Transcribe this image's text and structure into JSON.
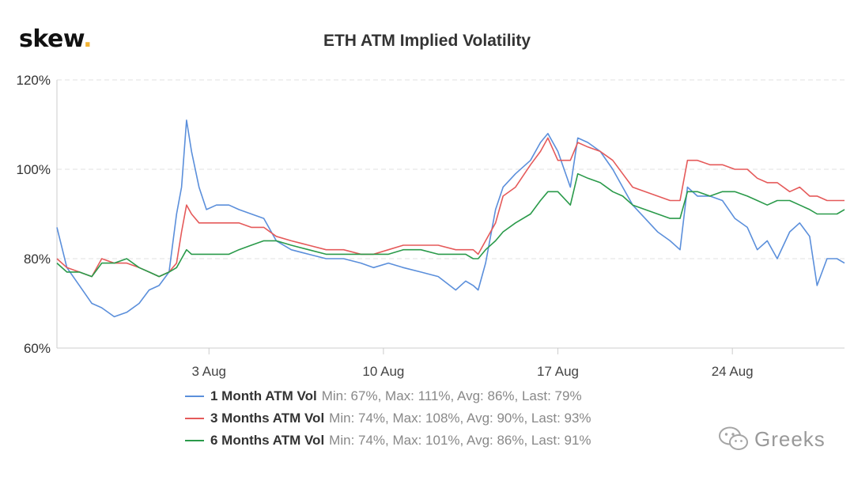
{
  "brand": {
    "text": "skew",
    "dot": "."
  },
  "chart_data": {
    "type": "line",
    "title": "ETH ATM Implied Volatility",
    "y_ticks": [
      "60%",
      "80%",
      "100%",
      "120%"
    ],
    "ylim": [
      60,
      120
    ],
    "x_ticks": [
      "3 Aug",
      "10 Aug",
      "17 Aug",
      "24 Aug"
    ],
    "x_tick_days": [
      3,
      10,
      17,
      24
    ],
    "xlim": [
      -3.1,
      28.5
    ],
    "grid": "horizontal dashed",
    "legend_position": "bottom-center",
    "series": [
      {
        "name": "1 Month ATM Vol",
        "stats": "Min: 67%, Max: 111%, Avg: 86%, Last: 79%",
        "color": "#5b8fdb",
        "x": [
          -3.1,
          -2.7,
          -2.2,
          -1.7,
          -1.3,
          -0.8,
          -0.3,
          0.2,
          0.6,
          1.0,
          1.4,
          1.7,
          1.9,
          2.1,
          2.3,
          2.6,
          2.9,
          3.3,
          3.8,
          4.2,
          4.7,
          5.2,
          5.7,
          6.3,
          7.0,
          7.7,
          8.4,
          9.1,
          9.6,
          10.2,
          10.8,
          11.5,
          12.2,
          12.9,
          13.3,
          13.6,
          13.8,
          14.1,
          14.5,
          14.8,
          15.3,
          15.9,
          16.3,
          16.6,
          17.0,
          17.5,
          17.8,
          18.2,
          18.7,
          19.2,
          19.6,
          20.0,
          20.5,
          21.0,
          21.5,
          21.9,
          22.2,
          22.6,
          23.1,
          23.6,
          24.1,
          24.6,
          25.0,
          25.4,
          25.8,
          26.3,
          26.7,
          27.1,
          27.4,
          27.8,
          28.2,
          28.5
        ],
        "values": [
          87,
          78,
          74,
          70,
          69,
          67,
          68,
          70,
          73,
          74,
          77,
          90,
          96,
          111,
          104,
          96,
          91,
          92,
          92,
          91,
          90,
          89,
          84,
          82,
          81,
          80,
          80,
          79,
          78,
          79,
          78,
          77,
          76,
          73,
          75,
          74,
          73,
          79,
          91,
          96,
          99,
          102,
          106,
          108,
          104,
          96,
          107,
          106,
          104,
          100,
          96,
          92,
          89,
          86,
          84,
          82,
          96,
          94,
          94,
          93,
          89,
          87,
          82,
          84,
          80,
          86,
          88,
          85,
          74,
          80,
          80,
          79
        ]
      },
      {
        "name": "3 Months ATM Vol",
        "stats": "Min: 74%, Max: 108%, Avg: 90%, Last: 93%",
        "color": "#e55a5a",
        "x": [
          -3.1,
          -2.7,
          -2.2,
          -1.7,
          -1.3,
          -0.8,
          -0.3,
          0.2,
          0.6,
          1.0,
          1.4,
          1.7,
          1.9,
          2.1,
          2.3,
          2.6,
          2.9,
          3.3,
          3.8,
          4.2,
          4.7,
          5.2,
          5.7,
          6.3,
          7.0,
          7.7,
          8.4,
          9.1,
          9.6,
          10.2,
          10.8,
          11.5,
          12.2,
          12.9,
          13.3,
          13.6,
          13.8,
          14.1,
          14.5,
          14.8,
          15.3,
          15.9,
          16.3,
          16.6,
          17.0,
          17.5,
          17.8,
          18.2,
          18.7,
          19.2,
          19.6,
          20.0,
          20.5,
          21.0,
          21.5,
          21.9,
          22.2,
          22.6,
          23.1,
          23.6,
          24.1,
          24.6,
          25.0,
          25.4,
          25.8,
          26.3,
          26.7,
          27.1,
          27.4,
          27.8,
          28.2,
          28.5
        ],
        "values": [
          80,
          78,
          77,
          76,
          80,
          79,
          79,
          78,
          77,
          76,
          77,
          79,
          86,
          92,
          90,
          88,
          88,
          88,
          88,
          88,
          87,
          87,
          85,
          84,
          83,
          82,
          82,
          81,
          81,
          82,
          83,
          83,
          83,
          82,
          82,
          82,
          81,
          84,
          88,
          94,
          96,
          101,
          104,
          107,
          102,
          102,
          106,
          105,
          104,
          102,
          99,
          96,
          95,
          94,
          93,
          93,
          102,
          102,
          101,
          101,
          100,
          100,
          98,
          97,
          97,
          95,
          96,
          94,
          94,
          93,
          93,
          93
        ]
      },
      {
        "name": "6 Months ATM Vol",
        "stats": "Min: 74%, Max: 101%, Avg: 86%, Last: 91%",
        "color": "#2a9a4a",
        "x": [
          -3.1,
          -2.7,
          -2.2,
          -1.7,
          -1.3,
          -0.8,
          -0.3,
          0.2,
          0.6,
          1.0,
          1.4,
          1.7,
          1.9,
          2.1,
          2.3,
          2.6,
          2.9,
          3.3,
          3.8,
          4.2,
          4.7,
          5.2,
          5.7,
          6.3,
          7.0,
          7.7,
          8.4,
          9.1,
          9.6,
          10.2,
          10.8,
          11.5,
          12.2,
          12.9,
          13.3,
          13.6,
          13.8,
          14.1,
          14.5,
          14.8,
          15.3,
          15.9,
          16.3,
          16.6,
          17.0,
          17.5,
          17.8,
          18.2,
          18.7,
          19.2,
          19.6,
          20.0,
          20.5,
          21.0,
          21.5,
          21.9,
          22.2,
          22.6,
          23.1,
          23.6,
          24.1,
          24.6,
          25.0,
          25.4,
          25.8,
          26.3,
          26.7,
          27.1,
          27.4,
          27.8,
          28.2,
          28.5
        ],
        "values": [
          79,
          77,
          77,
          76,
          79,
          79,
          80,
          78,
          77,
          76,
          77,
          78,
          80,
          82,
          81,
          81,
          81,
          81,
          81,
          82,
          83,
          84,
          84,
          83,
          82,
          81,
          81,
          81,
          81,
          81,
          82,
          82,
          81,
          81,
          81,
          80,
          80,
          82,
          84,
          86,
          88,
          90,
          93,
          95,
          95,
          92,
          99,
          98,
          97,
          95,
          94,
          92,
          91,
          90,
          89,
          89,
          95,
          95,
          94,
          95,
          95,
          94,
          93,
          92,
          93,
          93,
          92,
          91,
          90,
          90,
          90,
          91
        ]
      }
    ]
  },
  "watermark": {
    "text": "Greeks"
  }
}
